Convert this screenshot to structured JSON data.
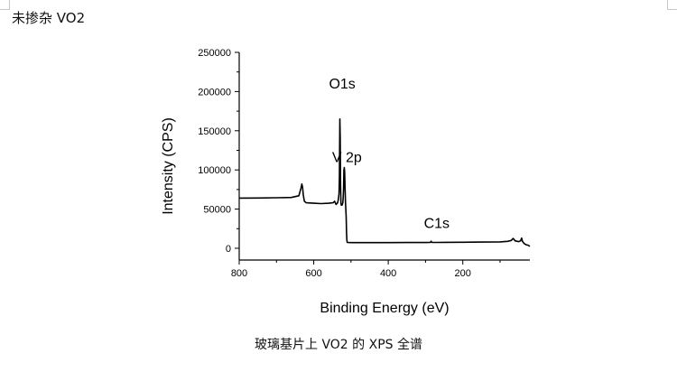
{
  "document": {
    "header_text": "未掺杂 VO2",
    "caption": "玻璃基片上 VO2 的 XPS 全谱"
  },
  "chart_data": {
    "type": "line",
    "title": "",
    "xlabel": "Binding Energy (eV)",
    "ylabel": "Intensity (CPS)",
    "xlim": [
      800,
      20
    ],
    "ylim": [
      -15000,
      250000
    ],
    "x_reversed": true,
    "x_ticks": [
      800,
      600,
      400,
      200
    ],
    "y_ticks": [
      0,
      50000,
      100000,
      150000,
      200000,
      250000
    ],
    "grid": false,
    "legend": "none",
    "line_color": "#000000",
    "annotations": [
      {
        "text": "O1s",
        "x": 530,
        "y": 165000
      },
      {
        "text": "V 2p",
        "x": 517,
        "y": 103000
      },
      {
        "text": "C1s",
        "x": 285,
        "y": 10000
      }
    ],
    "series": [
      {
        "x": [
          800,
          750,
          700,
          660,
          640,
          634,
          632,
          630,
          628,
          625,
          620,
          600,
          580,
          560,
          548,
          544,
          540,
          536,
          534,
          532,
          531,
          530,
          529,
          528,
          527,
          526,
          524,
          522,
          521,
          520,
          519,
          518,
          517,
          516,
          515,
          514,
          513,
          512,
          511,
          510,
          500,
          450,
          400,
          350,
          300,
          287,
          285,
          283,
          270,
          250,
          200,
          150,
          100,
          80,
          70,
          65,
          62,
          60,
          55,
          50,
          45,
          42,
          40,
          37,
          35,
          30,
          25,
          20
        ],
        "y": [
          64000,
          64200,
          64500,
          64800,
          67000,
          77000,
          82000,
          78000,
          68000,
          60000,
          58000,
          57500,
          57000,
          57500,
          58000,
          60000,
          56000,
          58000,
          62000,
          70000,
          90000,
          165000,
          140000,
          80000,
          58000,
          55000,
          55000,
          58000,
          65000,
          75000,
          100000,
          103000,
          98000,
          80000,
          60000,
          50000,
          40000,
          20000,
          10000,
          7500,
          7200,
          7200,
          7200,
          7300,
          7400,
          7500,
          9000,
          7500,
          7500,
          7600,
          7700,
          7900,
          8200,
          8800,
          10000,
          12500,
          11000,
          9500,
          9000,
          8500,
          9500,
          13000,
          9000,
          7000,
          6000,
          4500,
          4000,
          2500
        ]
      }
    ]
  }
}
